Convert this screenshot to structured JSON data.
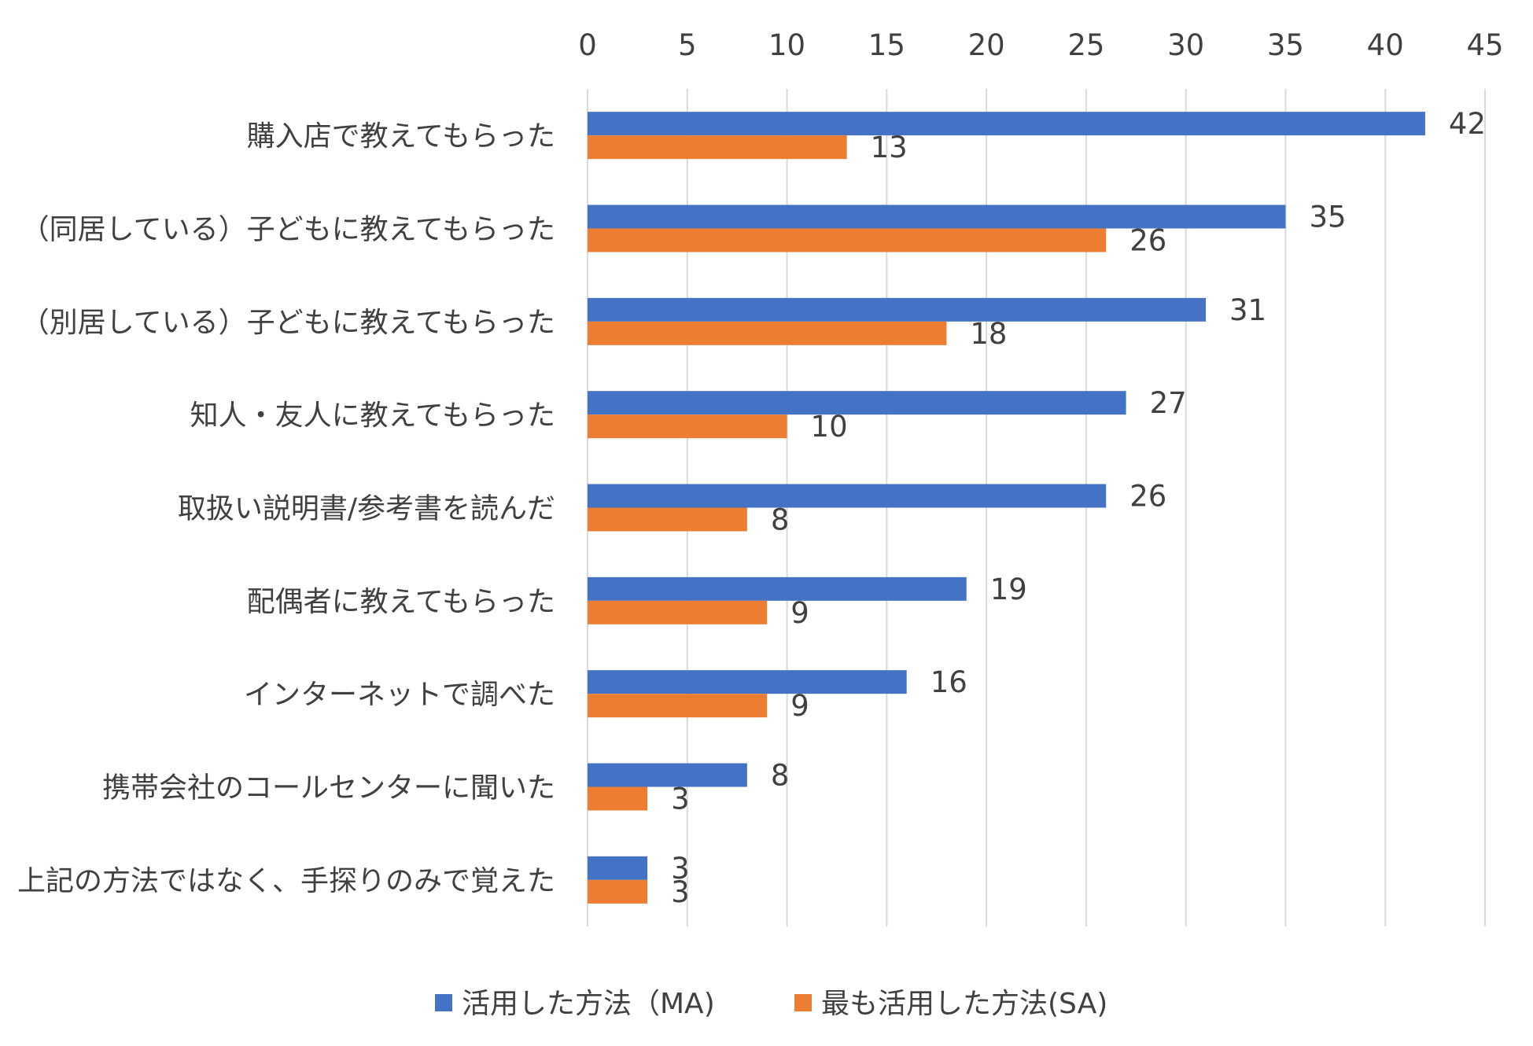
{
  "chart_data": {
    "type": "bar",
    "orientation": "horizontal",
    "categories": [
      "購入店で教えてもらった",
      "（同居している）子どもに教えてもらった",
      "（別居している）子どもに教えてもらった",
      "知人・友人に教えてもらった",
      "取扱い説明書/参考書を読んだ",
      "配偶者に教えてもらった",
      "インターネットで調べた",
      "携帯会社のコールセンターに聞いた",
      "上記の方法ではなく、手探りのみで覚えた"
    ],
    "series": [
      {
        "name": "活用した方法（MA)",
        "color": "#4472C4",
        "values": [
          42,
          35,
          31,
          27,
          26,
          19,
          16,
          8,
          3
        ]
      },
      {
        "name": "最も活用した方法(SA)",
        "color": "#ED7D31",
        "values": [
          13,
          26,
          18,
          10,
          8,
          9,
          9,
          3,
          3
        ]
      }
    ],
    "xlim": [
      0,
      45
    ],
    "ticks": [
      0,
      5,
      10,
      15,
      20,
      25,
      30,
      35,
      40,
      45
    ],
    "axis_position": "top",
    "gridlines": true,
    "gridline_color": "#D9D9D9",
    "data_labels": true,
    "legend_position": "bottom",
    "title": "",
    "xlabel": "",
    "ylabel": ""
  }
}
